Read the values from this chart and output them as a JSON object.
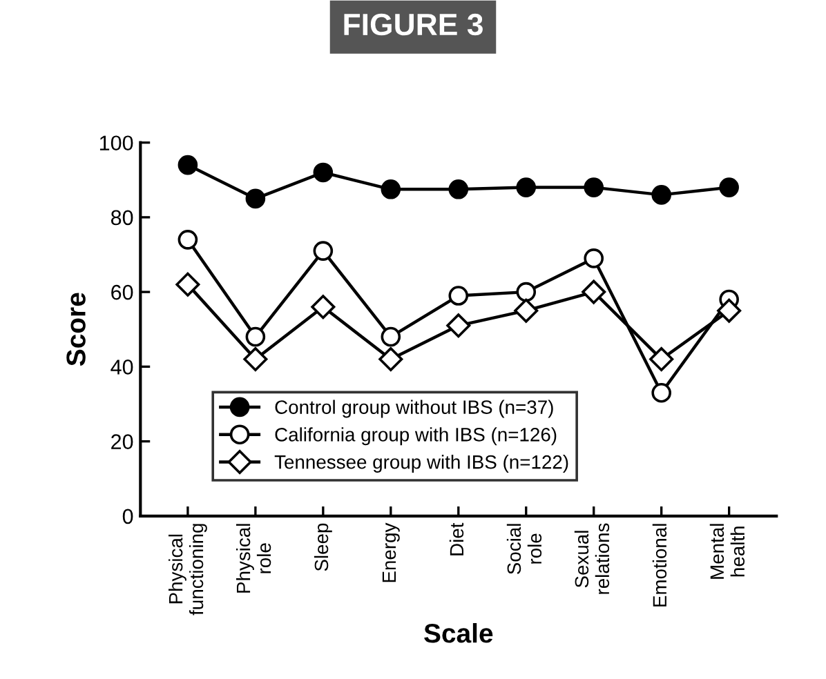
{
  "chart_data": {
    "type": "line",
    "title": "FIGURE 3",
    "xlabel": "Scale",
    "ylabel": "Score",
    "categories": [
      "Physical\nfunctioning",
      "Physical\nrole",
      "Sleep",
      "Energy",
      "Diet",
      "Social\nrole",
      "Sexual\nrelations",
      "Emotional",
      "Mental\nhealth"
    ],
    "series": [
      {
        "name": "Control group without IBS (n=37)",
        "color": "#000000",
        "marker": "circle",
        "values": [
          94,
          85,
          92,
          87.5,
          87.5,
          88,
          88,
          86,
          88
        ]
      },
      {
        "name": "California group with IBS (n=126)",
        "color": "#000000",
        "marker": "circle",
        "values": [
          74,
          48,
          71,
          48,
          59,
          60,
          69,
          33,
          58
        ]
      },
      {
        "name": "Tennessee group with IBS (n=122)",
        "color": "#000000",
        "marker": "diamond",
        "values": [
          62,
          42,
          56,
          42,
          51,
          55,
          60,
          42,
          55
        ]
      }
    ],
    "ylim": [
      0,
      100
    ],
    "yticks": [
      0,
      20,
      40,
      60,
      80,
      100
    ],
    "grid": false,
    "legend": "bottom",
    "line_style": "solid"
  }
}
